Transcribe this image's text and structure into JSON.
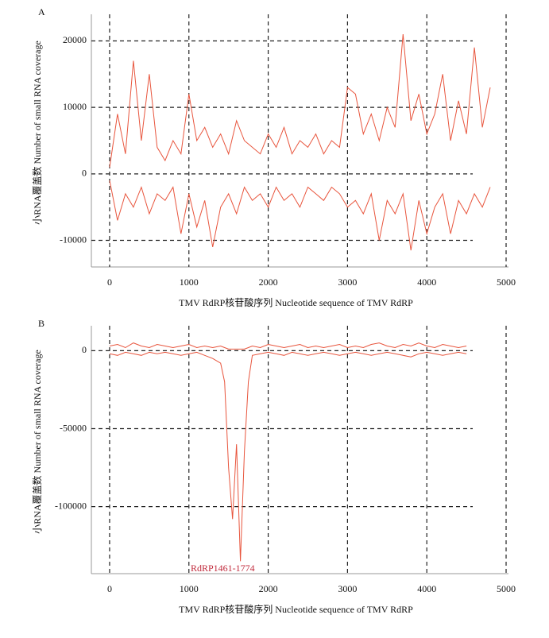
{
  "chart_data": [
    {
      "type": "line",
      "panel": "A",
      "x_label": "TMV RdRP核苷酸序列 Nucleotide sequence of  TMV RdRP",
      "y_label": "小RNA覆盖数 Number of small RNA coverage",
      "xlim": [
        -230,
        5030
      ],
      "xticks": [
        0,
        1000,
        2000,
        3000,
        4000,
        5000
      ],
      "ylim": [
        -14000,
        24000
      ],
      "yticks": [
        -10000,
        0,
        10000,
        20000
      ],
      "grid": true,
      "x": [
        0,
        100,
        200,
        300,
        400,
        500,
        600,
        700,
        800,
        900,
        1000,
        1100,
        1200,
        1300,
        1400,
        1500,
        1600,
        1700,
        1800,
        1900,
        2000,
        2100,
        2200,
        2300,
        2400,
        2500,
        2600,
        2700,
        2800,
        2900,
        3000,
        3100,
        3200,
        3300,
        3400,
        3500,
        3600,
        3700,
        3800,
        3900,
        4000,
        4100,
        4200,
        4300,
        4400,
        4500,
        4600,
        4700,
        4800
      ],
      "series": [
        {
          "color": "#e8553d",
          "values": [
            1000,
            9000,
            3000,
            17000,
            5000,
            15000,
            4000,
            2000,
            5000,
            3000,
            12000,
            5000,
            7000,
            4000,
            6000,
            3000,
            8000,
            5000,
            4000,
            3000,
            6000,
            4000,
            7000,
            3000,
            5000,
            4000,
            6000,
            3000,
            5000,
            4000,
            13000,
            12000,
            6000,
            9000,
            5000,
            10000,
            7000,
            21000,
            8000,
            12000,
            6000,
            9000,
            15000,
            5000,
            11000,
            6000,
            19000,
            7000,
            13000
          ]
        },
        {
          "color": "#e8553d",
          "values": [
            -1000,
            -7000,
            -3000,
            -5000,
            -2000,
            -6000,
            -3000,
            -4000,
            -2000,
            -9000,
            -3000,
            -8000,
            -4000,
            -11000,
            -5000,
            -3000,
            -6000,
            -2000,
            -4000,
            -3000,
            -5000,
            -2000,
            -4000,
            -3000,
            -5000,
            -2000,
            -3000,
            -4000,
            -2000,
            -3000,
            -5000,
            -4000,
            -6000,
            -3000,
            -10000,
            -4000,
            -6000,
            -3000,
            -11500,
            -4000,
            -9000,
            -5000,
            -3000,
            -9000,
            -4000,
            -6000,
            -3000,
            -5000,
            -2000
          ]
        }
      ]
    },
    {
      "type": "line",
      "panel": "B",
      "x_label": "TMV RdRP核苷酸序列 Nucleotide sequence of  TMV RdRP",
      "y_label": "小RNA覆盖数 Number of small RNA coverage",
      "annotation": "RdRP1461-1774",
      "xlim": [
        -230,
        5030
      ],
      "xticks": [
        0,
        1000,
        2000,
        3000,
        4000,
        5000
      ],
      "ylim": [
        -143000,
        16000
      ],
      "yticks": [
        -100000,
        -50000,
        0
      ],
      "grid": true,
      "x": [
        0,
        100,
        200,
        300,
        400,
        500,
        600,
        700,
        800,
        900,
        1000,
        1100,
        1200,
        1300,
        1400,
        1450,
        1500,
        1550,
        1600,
        1650,
        1700,
        1750,
        1800,
        1900,
        2000,
        2100,
        2200,
        2300,
        2400,
        2500,
        2600,
        2700,
        2800,
        2900,
        3000,
        3100,
        3200,
        3300,
        3400,
        3500,
        3600,
        3700,
        3800,
        3900,
        4000,
        4100,
        4200,
        4300,
        4400,
        4500
      ],
      "series": [
        {
          "color": "#e8553d",
          "values": [
            3000,
            4000,
            2000,
            5000,
            3000,
            2000,
            4000,
            3000,
            2000,
            3000,
            4000,
            2000,
            3000,
            2000,
            3000,
            2000,
            1000,
            1000,
            1000,
            1000,
            1000,
            2000,
            3000,
            2000,
            4000,
            3000,
            2000,
            3000,
            4000,
            2000,
            3000,
            2000,
            3000,
            4000,
            2000,
            3000,
            2000,
            4000,
            5000,
            3000,
            2000,
            4000,
            3000,
            5000,
            3000,
            2000,
            4000,
            3000,
            2000,
            3000
          ]
        },
        {
          "color": "#e8553d",
          "values": [
            -2000,
            -3000,
            -1000,
            -2000,
            -3000,
            -1000,
            -2000,
            -1000,
            -2000,
            -3000,
            -2000,
            -1000,
            -3000,
            -5000,
            -8000,
            -20000,
            -75000,
            -108000,
            -60000,
            -135000,
            -65000,
            -20000,
            -3000,
            -2000,
            -1000,
            -2000,
            -3000,
            -1000,
            -2000,
            -3000,
            -2000,
            -1000,
            -2000,
            -3000,
            -2000,
            -1000,
            -2000,
            -3000,
            -2000,
            -1000,
            -2000,
            -3000,
            -4000,
            -2000,
            -1000,
            -2000,
            -3000,
            -2000,
            -1000,
            -2000
          ]
        }
      ]
    }
  ]
}
